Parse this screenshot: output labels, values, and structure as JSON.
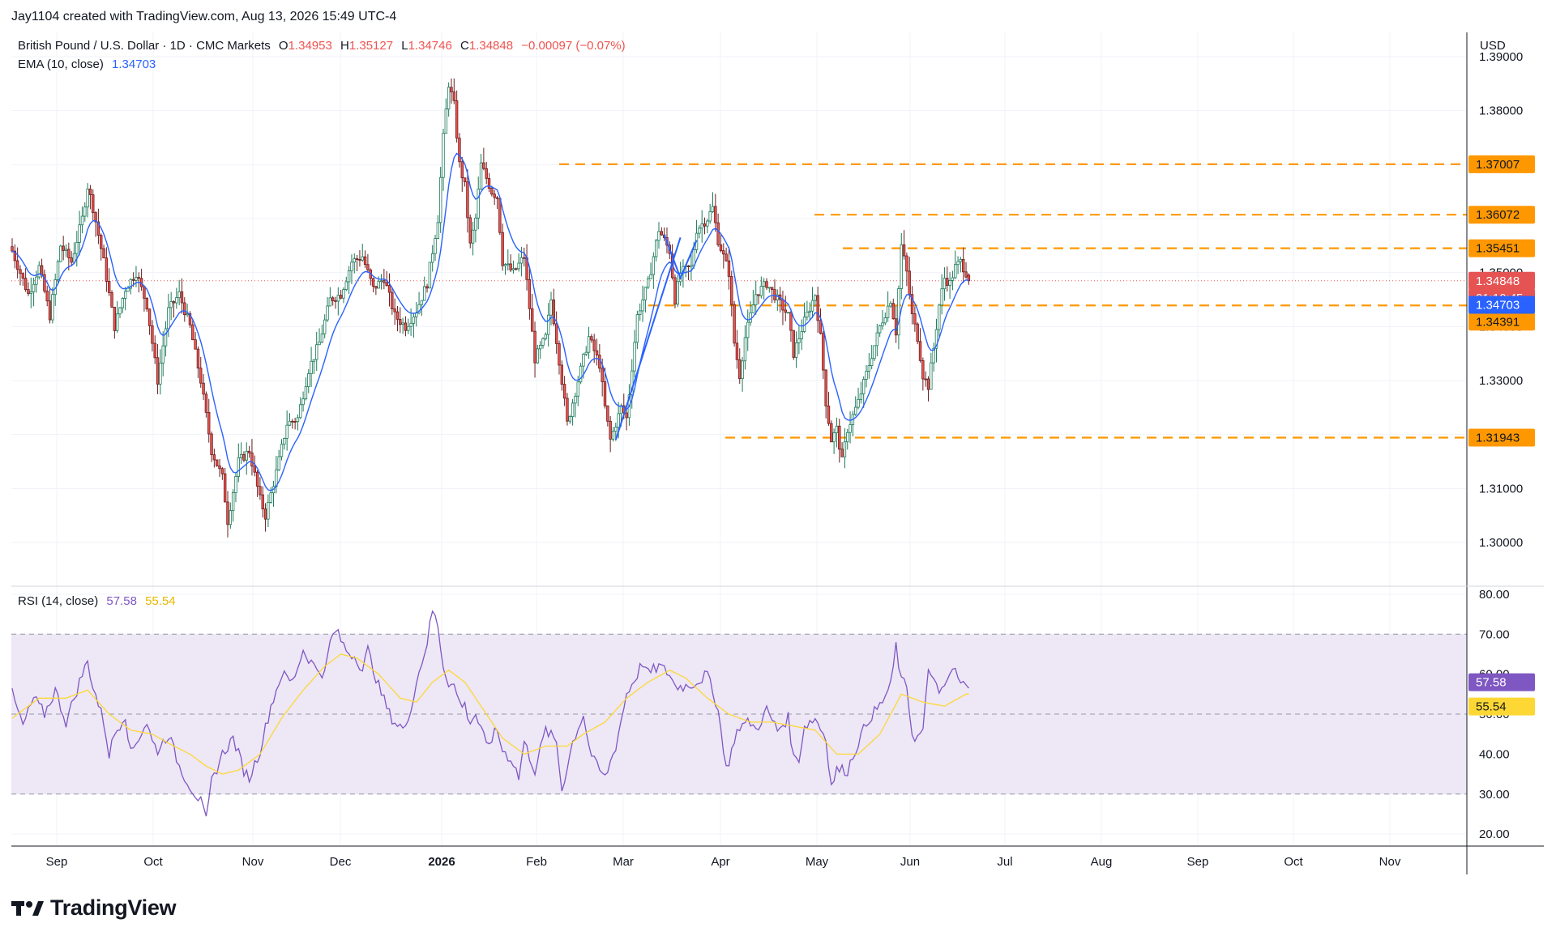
{
  "header": {
    "credit": "Jay1104 created with TradingView.com, Aug 13, 2026 15:49 UTC-4",
    "symbol": "British Pound / U.S. Dollar · 1D · CMC Markets",
    "open_label": "O",
    "open": "1.34953",
    "high_label": "H",
    "high": "1.35127",
    "low_label": "L",
    "low": "1.34746",
    "close_label": "C",
    "close": "1.34848",
    "change": "−0.00097 (−0.07%)",
    "ema_label": "EMA (10, close)",
    "ema_value": "1.34703",
    "rsi_label": "RSI (14, close)",
    "rsi_value": "57.58",
    "rsi_ma_value": "55.54",
    "currency": "USD"
  },
  "logo": {
    "text": "TradingView",
    "icon": "tradingview-logo-icon"
  },
  "colors": {
    "up": "#26a69a",
    "down": "#ef5350",
    "up_fill": "#ffffff",
    "ema": "#2962ff",
    "levels": "#ff9800",
    "rsi": "#7e57c2",
    "rsi_ma": "#fdd835",
    "rsi_band": "#ede7f6",
    "grid": "#f0f3fa",
    "price_line": "#ef5350",
    "current_price_bg": "#e55353"
  },
  "chart_data": [
    {
      "type": "candlestick",
      "title": "British Pound / U.S. Dollar · 1D · CMC Markets",
      "ylim": [
        1.2925,
        1.3945
      ],
      "y_ticks": [
        "1.39000",
        "1.38000",
        "1.37000",
        "1.36000",
        "1.35000",
        "1.34000",
        "1.33000",
        "1.32000",
        "1.31000",
        "1.30000"
      ],
      "x_ticks": [
        "Sep",
        "Oct",
        "Nov",
        "Dec",
        "2026",
        "Feb",
        "Mar",
        "Apr",
        "May",
        "Jun",
        "Jul",
        "Aug",
        "Sep",
        "Oct",
        "Nov"
      ],
      "close_path": [
        [
          0,
          1.354
        ],
        [
          6,
          1.346
        ],
        [
          10,
          1.351
        ],
        [
          14,
          1.342
        ],
        [
          18,
          1.355
        ],
        [
          22,
          1.352
        ],
        [
          26,
          1.36
        ],
        [
          28,
          1.366
        ],
        [
          30,
          1.362
        ],
        [
          34,
          1.352
        ],
        [
          38,
          1.34
        ],
        [
          42,
          1.347
        ],
        [
          46,
          1.35
        ],
        [
          50,
          1.344
        ],
        [
          54,
          1.33
        ],
        [
          58,
          1.343
        ],
        [
          62,
          1.346
        ],
        [
          66,
          1.34
        ],
        [
          70,
          1.33
        ],
        [
          74,
          1.317
        ],
        [
          78,
          1.312
        ],
        [
          80,
          1.304
        ],
        [
          84,
          1.315
        ],
        [
          88,
          1.317
        ],
        [
          92,
          1.308
        ],
        [
          94,
          1.305
        ],
        [
          98,
          1.313
        ],
        [
          102,
          1.322
        ],
        [
          106,
          1.323
        ],
        [
          110,
          1.332
        ],
        [
          114,
          1.337
        ],
        [
          118,
          1.345
        ],
        [
          122,
          1.346
        ],
        [
          126,
          1.352
        ],
        [
          130,
          1.353
        ],
        [
          134,
          1.347
        ],
        [
          138,
          1.349
        ],
        [
          142,
          1.342
        ],
        [
          146,
          1.34
        ],
        [
          150,
          1.343
        ],
        [
          154,
          1.348
        ],
        [
          158,
          1.36
        ],
        [
          160,
          1.375
        ],
        [
          162,
          1.385
        ],
        [
          164,
          1.381
        ],
        [
          166,
          1.37
        ],
        [
          168,
          1.366
        ],
        [
          170,
          1.355
        ],
        [
          172,
          1.36
        ],
        [
          174,
          1.37
        ],
        [
          178,
          1.365
        ],
        [
          180,
          1.364
        ],
        [
          182,
          1.352
        ],
        [
          186,
          1.35
        ],
        [
          190,
          1.353
        ],
        [
          194,
          1.334
        ],
        [
          198,
          1.338
        ],
        [
          200,
          1.345
        ],
        [
          204,
          1.33
        ],
        [
          206,
          1.322
        ],
        [
          210,
          1.33
        ],
        [
          214,
          1.338
        ],
        [
          218,
          1.333
        ],
        [
          220,
          1.325
        ],
        [
          222,
          1.319
        ],
        [
          226,
          1.325
        ],
        [
          228,
          1.323
        ],
        [
          232,
          1.342
        ],
        [
          236,
          1.348
        ],
        [
          240,
          1.358
        ],
        [
          244,
          1.354
        ],
        [
          246,
          1.345
        ],
        [
          248,
          1.35
        ],
        [
          252,
          1.351
        ],
        [
          254,
          1.358
        ],
        [
          258,
          1.36
        ],
        [
          260,
          1.362
        ],
        [
          262,
          1.356
        ],
        [
          266,
          1.35
        ],
        [
          268,
          1.337
        ],
        [
          270,
          1.331
        ],
        [
          272,
          1.338
        ],
        [
          276,
          1.346
        ],
        [
          280,
          1.348
        ],
        [
          284,
          1.345
        ],
        [
          288,
          1.342
        ],
        [
          290,
          1.335
        ],
        [
          294,
          1.341
        ],
        [
          298,
          1.346
        ],
        [
          300,
          1.338
        ],
        [
          302,
          1.326
        ],
        [
          304,
          1.319
        ],
        [
          306,
          1.321
        ],
        [
          308,
          1.315
        ],
        [
          310,
          1.321
        ],
        [
          314,
          1.326
        ],
        [
          318,
          1.333
        ],
        [
          322,
          1.34
        ],
        [
          326,
          1.345
        ],
        [
          328,
          1.339
        ],
        [
          330,
          1.355
        ],
        [
          332,
          1.35
        ],
        [
          334,
          1.342
        ],
        [
          336,
          1.338
        ],
        [
          338,
          1.331
        ],
        [
          340,
          1.329
        ],
        [
          342,
          1.336
        ],
        [
          344,
          1.344
        ],
        [
          346,
          1.349
        ],
        [
          348,
          1.348
        ],
        [
          350,
          1.351
        ],
        [
          352,
          1.352
        ],
        [
          354,
          1.35
        ],
        [
          355,
          1.3485
        ]
      ],
      "last_close": 1.34848,
      "ema_10": 1.34703,
      "levels": [
        1.37007,
        1.36072,
        1.35451,
        1.34391,
        1.31943
      ],
      "level_labels": [
        "1.37007",
        "1.36072",
        "1.35451",
        "1.34391",
        "1.31943"
      ],
      "current_price_label": "1.34848",
      "countdown": "01:10:45",
      "ema_label": "1.34703",
      "trend_lines": [
        [
          [
            242,
            1.357
          ],
          [
            248,
            1.349
          ],
          [
            254,
            1.356
          ]
        ],
        [
          [
            224,
            1.319
          ],
          [
            248,
            1.3565
          ]
        ]
      ]
    },
    {
      "type": "line",
      "title": "RSI (14, close)",
      "ylim": [
        17,
        82
      ],
      "y_ticks": [
        "80.00",
        "70.00",
        "60.00",
        "50.00",
        "40.00",
        "30.00",
        "20.00"
      ],
      "band": [
        30,
        70
      ],
      "mid": 50,
      "series": [
        {
          "name": "RSI",
          "values_path": [
            [
              0,
              55
            ],
            [
              4,
              47
            ],
            [
              8,
              54
            ],
            [
              12,
              50
            ],
            [
              16,
              56
            ],
            [
              20,
              48
            ],
            [
              24,
              56
            ],
            [
              26,
              60
            ],
            [
              28,
              63
            ],
            [
              30,
              57
            ],
            [
              34,
              48
            ],
            [
              36,
              40
            ],
            [
              38,
              45
            ],
            [
              42,
              50
            ],
            [
              44,
              40
            ],
            [
              46,
              43
            ],
            [
              50,
              48
            ],
            [
              52,
              43
            ],
            [
              54,
              41
            ],
            [
              58,
              45
            ],
            [
              62,
              37
            ],
            [
              66,
              32
            ],
            [
              68,
              30
            ],
            [
              70,
              28
            ],
            [
              72,
              23
            ],
            [
              74,
              33
            ],
            [
              78,
              40
            ],
            [
              82,
              44
            ],
            [
              86,
              36
            ],
            [
              88,
              34
            ],
            [
              92,
              41
            ],
            [
              96,
              52
            ],
            [
              100,
              60
            ],
            [
              104,
              58
            ],
            [
              108,
              66
            ],
            [
              112,
              62
            ],
            [
              116,
              60
            ],
            [
              118,
              68
            ],
            [
              120,
              71
            ],
            [
              124,
              66
            ],
            [
              128,
              64
            ],
            [
              130,
              61
            ],
            [
              132,
              66
            ],
            [
              136,
              57
            ],
            [
              140,
              50
            ],
            [
              142,
              48
            ],
            [
              146,
              46
            ],
            [
              148,
              52
            ],
            [
              150,
              58
            ],
            [
              152,
              63
            ],
            [
              154,
              68
            ],
            [
              156,
              76
            ],
            [
              158,
              72
            ],
            [
              160,
              62
            ],
            [
              162,
              58
            ],
            [
              164,
              57
            ],
            [
              166,
              53
            ],
            [
              168,
              52
            ],
            [
              170,
              48
            ],
            [
              172,
              50
            ],
            [
              176,
              42
            ],
            [
              180,
              46
            ],
            [
              182,
              41
            ],
            [
              186,
              38
            ],
            [
              188,
              34
            ],
            [
              190,
              43
            ],
            [
              194,
              36
            ],
            [
              198,
              46
            ],
            [
              202,
              43
            ],
            [
              204,
              31
            ],
            [
              208,
              43
            ],
            [
              212,
              50
            ],
            [
              214,
              42
            ],
            [
              216,
              38
            ],
            [
              220,
              34
            ],
            [
              224,
              42
            ],
            [
              228,
              55
            ],
            [
              232,
              60
            ],
            [
              234,
              63
            ],
            [
              236,
              60
            ],
            [
              240,
              62
            ],
            [
              244,
              60
            ],
            [
              246,
              57
            ],
            [
              250,
              57
            ],
            [
              254,
              58
            ],
            [
              258,
              60
            ],
            [
              260,
              55
            ],
            [
              262,
              52
            ],
            [
              264,
              40
            ],
            [
              266,
              37
            ],
            [
              268,
              44
            ],
            [
              270,
              47
            ],
            [
              274,
              48
            ],
            [
              276,
              46
            ],
            [
              280,
              51
            ],
            [
              284,
              46
            ],
            [
              288,
              49
            ],
            [
              290,
              39
            ],
            [
              292,
              39
            ],
            [
              294,
              47
            ],
            [
              298,
              49
            ],
            [
              302,
              44
            ],
            [
              304,
              32
            ],
            [
              306,
              36
            ],
            [
              310,
              36
            ],
            [
              314,
              43
            ],
            [
              318,
              49
            ],
            [
              322,
              52
            ],
            [
              326,
              57
            ],
            [
              328,
              67
            ],
            [
              330,
              58
            ],
            [
              332,
              57
            ],
            [
              334,
              45
            ],
            [
              336,
              44
            ],
            [
              338,
              46
            ],
            [
              340,
              60
            ],
            [
              342,
              60
            ],
            [
              344,
              54
            ],
            [
              346,
              57
            ],
            [
              348,
              60
            ],
            [
              350,
              61
            ],
            [
              352,
              57
            ],
            [
              354,
              58
            ]
          ]
        },
        {
          "name": "RSI MA",
          "values_path": [
            [
              0,
              49
            ],
            [
              10,
              54
            ],
            [
              20,
              54
            ],
            [
              28,
              56
            ],
            [
              36,
              50
            ],
            [
              44,
              46
            ],
            [
              52,
              45
            ],
            [
              60,
              42
            ],
            [
              66,
              40
            ],
            [
              72,
              37
            ],
            [
              78,
              35
            ],
            [
              84,
              36
            ],
            [
              92,
              40
            ],
            [
              100,
              49
            ],
            [
              108,
              56
            ],
            [
              116,
              62
            ],
            [
              122,
              65
            ],
            [
              128,
              64
            ],
            [
              136,
              60
            ],
            [
              144,
              54
            ],
            [
              150,
              53
            ],
            [
              156,
              58
            ],
            [
              162,
              61
            ],
            [
              168,
              58
            ],
            [
              176,
              50
            ],
            [
              182,
              44
            ],
            [
              190,
              40
            ],
            [
              198,
              42
            ],
            [
              206,
              42
            ],
            [
              212,
              45
            ],
            [
              220,
              48
            ],
            [
              228,
              54
            ],
            [
              236,
              58
            ],
            [
              244,
              61
            ],
            [
              250,
              59
            ],
            [
              258,
              54
            ],
            [
              266,
              50
            ],
            [
              274,
              48
            ],
            [
              282,
              48
            ],
            [
              290,
              47
            ],
            [
              298,
              46
            ],
            [
              306,
              40
            ],
            [
              314,
              40
            ],
            [
              322,
              45
            ],
            [
              330,
              55
            ],
            [
              338,
              53
            ],
            [
              346,
              52
            ],
            [
              354,
              55
            ]
          ]
        }
      ],
      "last_rsi": 57.58,
      "last_ma": 55.54,
      "rsi_label": "57.58",
      "ma_label": "55.54"
    }
  ]
}
